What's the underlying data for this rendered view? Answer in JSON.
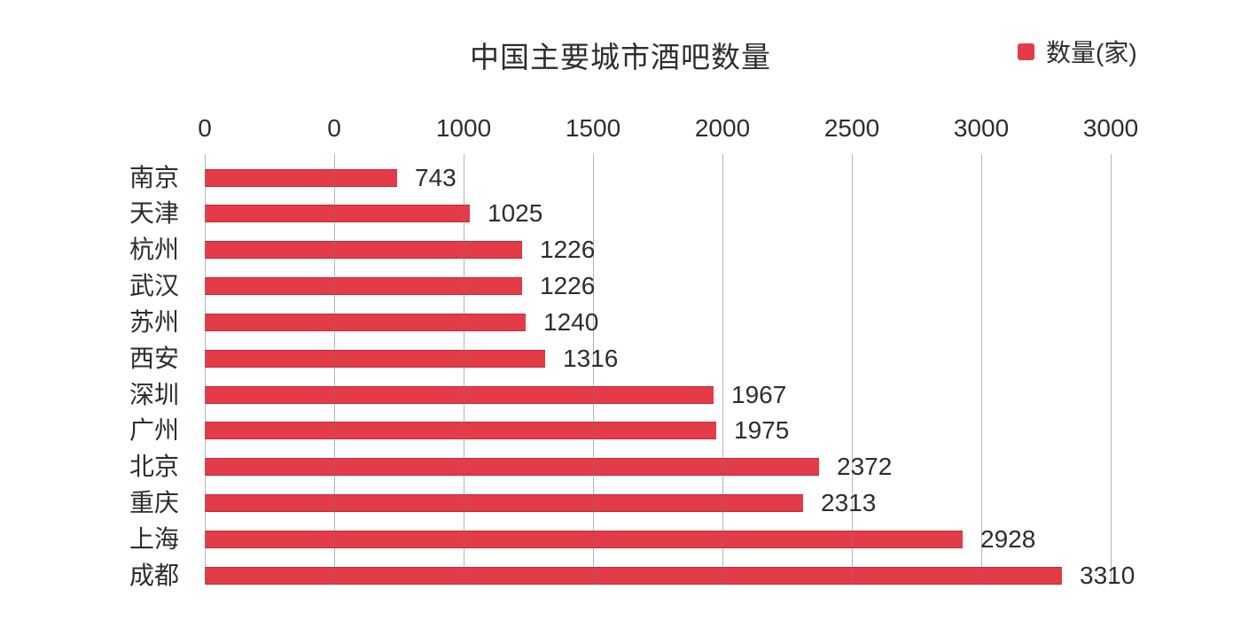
{
  "chart_data": {
    "type": "bar",
    "orientation": "horizontal",
    "title": "中国主要城市酒吧数量",
    "legend": {
      "label": "数量(家)",
      "position": "top-right"
    },
    "categories": [
      "南京",
      "天津",
      "杭州",
      "武汉",
      "苏州",
      "西安",
      "深圳",
      "广州",
      "北京",
      "重庆",
      "上海",
      "成都"
    ],
    "values": [
      743,
      1025,
      1226,
      1226,
      1240,
      1316,
      1967,
      1975,
      2372,
      2313,
      2928,
      3310
    ],
    "value_labels_shown": true,
    "x_axis": {
      "position": "top",
      "tick_labels": [
        "0",
        "0",
        "1000",
        "1500",
        "2000",
        "2500",
        "3000",
        "3000"
      ],
      "xlim": [
        0,
        3500
      ],
      "grid": true
    },
    "colors": {
      "bar": "#e43b48",
      "gridline": "rgba(120,120,120,0.55)",
      "text": "#2d2d2d"
    }
  }
}
